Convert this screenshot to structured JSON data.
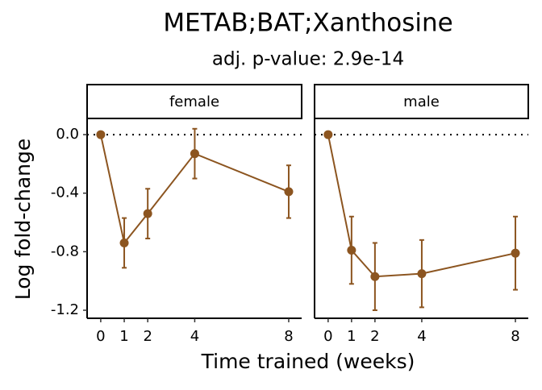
{
  "chart_data": {
    "type": "line",
    "title": "METAB;BAT;Xanthosine",
    "subtitle": "adj. p-value: 2.9e-14",
    "x_label": "Time trained (weeks)",
    "y_label": "Log fold-change",
    "color": "#8c5520",
    "xlim": [
      -0.58,
      8.55
    ],
    "xticks": [
      0,
      1,
      2,
      4,
      8
    ],
    "ylim": [
      -1.255,
      0.105
    ],
    "yticks": [
      {
        "value": 0,
        "label": "0.0"
      },
      {
        "value": -0.4,
        "label": "-0.4"
      },
      {
        "value": -0.8,
        "label": "-0.8"
      },
      {
        "value": -1.2,
        "label": "-1.2"
      }
    ],
    "hline": 0,
    "facets": [
      {
        "name": "female",
        "x": [
          0,
          1,
          2,
          4,
          8
        ],
        "values": [
          0,
          -0.74,
          -0.54,
          -0.13,
          -0.39
        ],
        "errors": [
          null,
          0.17,
          0.17,
          0.17,
          0.18
        ]
      },
      {
        "name": "male",
        "x": [
          0,
          1,
          2,
          4,
          8
        ],
        "values": [
          0,
          -0.79,
          -0.97,
          -0.95,
          -0.81
        ],
        "errors": [
          null,
          0.23,
          0.23,
          0.23,
          0.25
        ]
      }
    ]
  }
}
